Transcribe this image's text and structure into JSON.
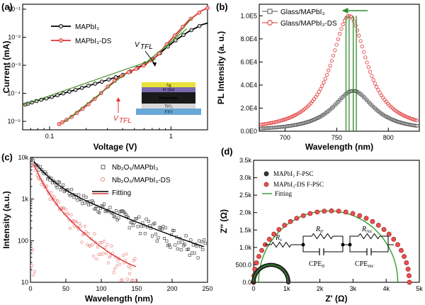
{
  "chart_data": [
    {
      "panel": "(a)",
      "type": "line",
      "xlabel": "Voltage (V)",
      "ylabel": "Current (mA)",
      "xscale": "log",
      "yscale": "log",
      "xlim": [
        0.06,
        2
      ],
      "ylim": [
        5e-06,
        0.15
      ],
      "x_ticks": [
        "0.1",
        "1"
      ],
      "y_ticks": [
        "10⁻⁵",
        "10⁻⁴",
        "10⁻³",
        "10⁻²",
        "10⁻¹"
      ],
      "legend_position": "top-left",
      "series": [
        {
          "name": "MAPbI₃",
          "color": "#000000",
          "x": [
            0.063,
            0.08,
            0.1,
            0.13,
            0.17,
            0.22,
            0.3,
            0.4,
            0.5,
            0.6,
            0.75,
            0.9,
            1.1,
            1.4,
            1.8,
            2.0
          ],
          "y": [
            4e-05,
            5.5e-05,
            7e-05,
            0.0001,
            0.00014,
            0.0002,
            0.0003,
            0.00045,
            0.0007,
            0.0011,
            0.002,
            0.004,
            0.008,
            0.016,
            0.028,
            0.032
          ]
        },
        {
          "name": "MAPbI₃-DS",
          "color": "#e03030",
          "x": [
            0.12,
            0.15,
            0.2,
            0.25,
            0.3,
            0.35,
            0.42,
            0.5,
            0.6,
            0.75,
            0.9,
            1.1,
            1.4,
            1.8,
            2.0
          ],
          "y": [
            8e-06,
            1.4e-05,
            3.5e-05,
            8e-05,
            0.00017,
            0.0003,
            0.0005,
            0.0007,
            0.001,
            0.002,
            0.005,
            0.013,
            0.04,
            0.09,
            0.11
          ]
        }
      ],
      "annotations": [
        "V_TFL",
        "V_TFL"
      ],
      "inset_layers": [
        "Ag",
        "PCBM",
        "Perovskite",
        "TiO₂",
        "FTO"
      ]
    },
    {
      "panel": "(b)",
      "type": "scatter",
      "xlabel": "Wavelength (nm)",
      "ylabel": "PL Intensity (a. u.)",
      "xlim": [
        675,
        830
      ],
      "ylim": [
        0,
        110000.0
      ],
      "x_ticks": [
        "700",
        "750",
        "800"
      ],
      "y_ticks": [
        "0.0E0",
        "2.0E4",
        "4.0E4",
        "6.0E4",
        "8.0E4",
        "1.0E5"
      ],
      "legend_position": "top-left",
      "series": [
        {
          "name": "Glass/MAPbI₃",
          "color": "#555555",
          "peak_nm": 766,
          "peak": 35000,
          "fwhm_nm": 48
        },
        {
          "name": "Glass/MAPbI₃-DS",
          "color": "#e03030",
          "peak_nm": 762,
          "peak": 100000,
          "fwhm_nm": 42
        }
      ]
    },
    {
      "panel": "(c)",
      "type": "scatter",
      "xlabel": "Wavelength (nm)",
      "ylabel": "Intensity (a.u.)",
      "yscale": "log",
      "xlim": [
        0,
        250
      ],
      "ylim": [
        10,
        10000
      ],
      "x_ticks": [
        "0",
        "50",
        "100",
        "150",
        "200",
        "250"
      ],
      "y_ticks": [
        "10",
        "100",
        "1k",
        "10k"
      ],
      "legend_position": "top-right",
      "series": [
        {
          "name": "Nb₂O₅/MAPbI₃",
          "color": "#333333",
          "tau1": 16,
          "tau2": 62,
          "a1": 7000,
          "a2": 3000
        },
        {
          "name": "Nb₂O₅/MAPbI₃-DS",
          "color": "#e03030",
          "tau1": 10,
          "tau2": 28,
          "a1": 8000,
          "a2": 2000
        },
        {
          "name": "Fitting",
          "color": "#000000"
        }
      ]
    },
    {
      "panel": "(d)",
      "type": "scatter",
      "xlabel": "Z' (Ω)",
      "ylabel": "Z'' (Ω)",
      "xlim": [
        0,
        5000
      ],
      "ylim": [
        0,
        3500
      ],
      "x_ticks": [
        "0",
        "1k",
        "2k",
        "3k",
        "4k",
        "5k"
      ],
      "y_ticks": [
        "0.0",
        "500.0",
        "1.0k",
        "1.5k",
        "2.0k",
        "2.5k",
        "3.0k",
        "3.5k"
      ],
      "legend_position": "top-left",
      "series": [
        {
          "name": "MAPbI₃ F-PSC",
          "color": "#111111",
          "arc_start": 0,
          "arc_end": 1050
        },
        {
          "name": "MAPbI₃-DS F-PSC",
          "color": "#e03030",
          "arc_start": 0,
          "arc_end": 4700
        },
        {
          "name": "Fitting",
          "color": "#2e9e2e"
        }
      ],
      "circuit_labels": [
        "R_s",
        "R_tr",
        "R_rec",
        "CPE_tr",
        "CPE_rec"
      ]
    }
  ],
  "labels": {
    "panel_a": "(a)",
    "panel_b": "(b)",
    "panel_c": "(c)",
    "panel_d": "(d)",
    "vtfl": "V",
    "vtfl_sub": "TFL"
  }
}
